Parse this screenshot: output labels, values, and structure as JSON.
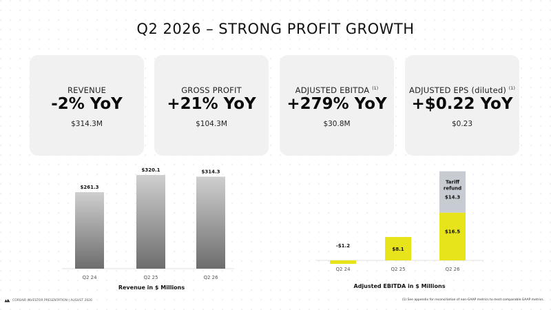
{
  "title": "Q2 2026 – STRONG PROFIT GROWTH",
  "cards": [
    {
      "label": "REVENUE",
      "sup": "",
      "value": "-2% YoY",
      "sub": "$314.3M"
    },
    {
      "label": "GROSS PROFIT",
      "sup": "",
      "value": "+21% YoY",
      "sub": "$104.3M"
    },
    {
      "label": "ADJUSTED EBITDA",
      "sup": "(1)",
      "value": "+279% YoY",
      "sub": "$30.8M"
    },
    {
      "label": "ADJUSTED EPS (diluted)",
      "sup": "(1)",
      "value": "+$0.22 YoY",
      "sub": "$0.23"
    }
  ],
  "chart_data": [
    {
      "type": "bar",
      "title": "Revenue in $ Millions",
      "categories": [
        "Q2 24",
        "Q2 25",
        "Q2 26"
      ],
      "values": [
        261.3,
        320.1,
        314.3
      ],
      "data_labels": [
        "$261.3",
        "$320.1",
        "$314.3"
      ],
      "colors": {
        "bar_top": "#cfcfcf",
        "bar_bottom": "#6d6d6d"
      }
    },
    {
      "type": "bar",
      "stacked": true,
      "title": "Adjusted EBITDA in $ Millions",
      "categories": [
        "Q2 24",
        "Q2 25",
        "Q2 26"
      ],
      "series": [
        {
          "values": [
            -1.2,
            8.1,
            16.5
          ],
          "data_labels": [
            "-$1.2",
            "$8.1",
            "$16.5"
          ],
          "color": "#e8e41c"
        },
        {
          "name": "Tariff refund",
          "values": [
            0,
            0,
            14.3
          ],
          "data_labels": [
            "",
            "",
            "$14.3"
          ],
          "color": "#c6ccd1"
        }
      ]
    }
  ],
  "footer": {
    "left": "CORSAIR INVESTOR PRESENTATION | AUGUST 2026",
    "right": "(1) See appendix for reconciliation of non-GAAP metrics to most comparable GAAP metrics."
  }
}
